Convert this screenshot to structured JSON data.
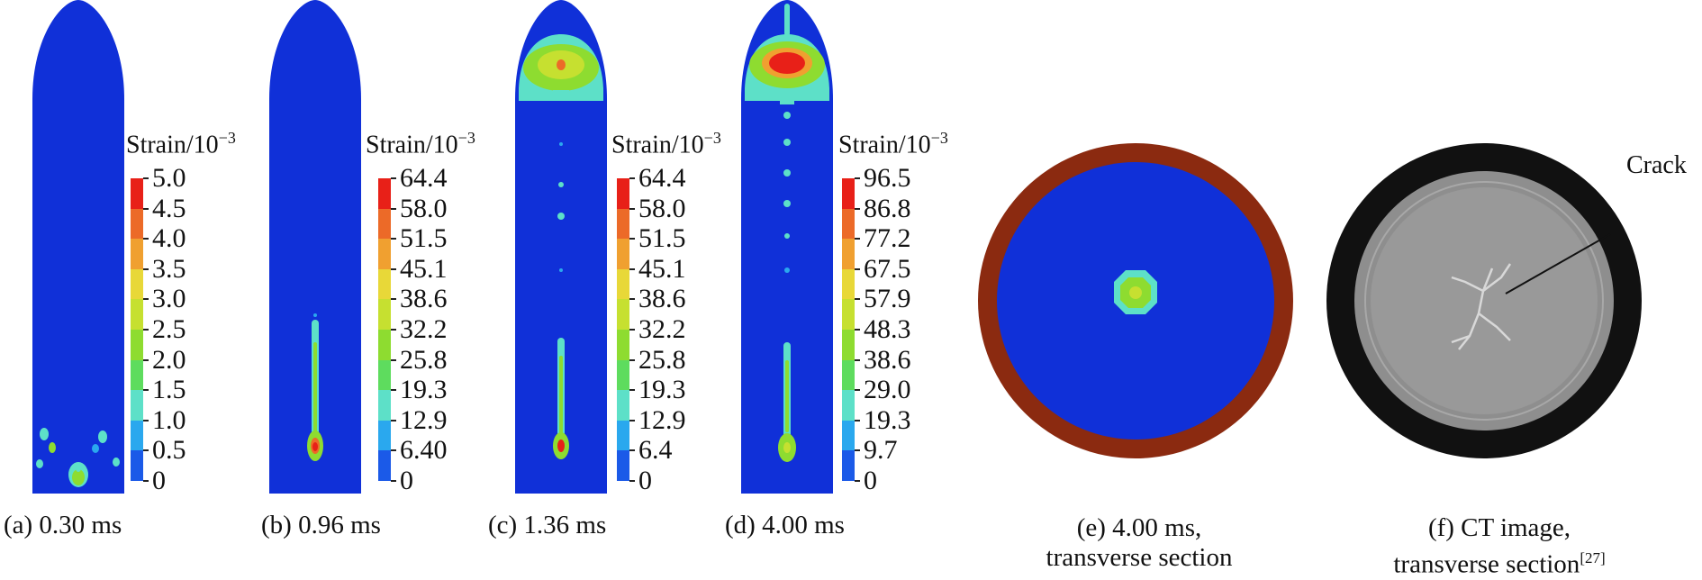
{
  "colorbar_title_main": "Strain/10",
  "colorbar_title_exp": "−3",
  "colormap": [
    "#1028d8",
    "#1b5ae8",
    "#2aa8ee",
    "#5de0c8",
    "#5edc5e",
    "#8edc30",
    "#c6e030",
    "#e8d838",
    "#f0a030",
    "#ec6a28",
    "#e82018"
  ],
  "panels": [
    {
      "id": "a",
      "caption": "(a) 0.30 ms",
      "ticks": [
        "5.0",
        "4.5",
        "4.0",
        "3.5",
        "3.0",
        "2.5",
        "2.0",
        "1.5",
        "1.0",
        "0.5",
        "0"
      ]
    },
    {
      "id": "b",
      "caption": "(b) 0.96 ms",
      "ticks": [
        "64.4",
        "58.0",
        "51.5",
        "45.1",
        "38.6",
        "32.2",
        "25.8",
        "19.3",
        "12.9",
        "6.40",
        "0"
      ]
    },
    {
      "id": "c",
      "caption": "(c) 1.36 ms",
      "ticks": [
        "64.4",
        "58.0",
        "51.5",
        "45.1",
        "38.6",
        "32.2",
        "25.8",
        "19.3",
        "12.9",
        "6.4",
        "0"
      ]
    },
    {
      "id": "d",
      "caption": "(d) 4.00 ms",
      "ticks": [
        "96.5",
        "86.8",
        "77.2",
        "67.5",
        "57.9",
        "48.3",
        "38.6",
        "29.0",
        "19.3",
        "9.7",
        "0"
      ]
    }
  ],
  "panel_e": {
    "caption_line1": "(e) 4.00 ms,",
    "caption_line2": "transverse section"
  },
  "panel_f": {
    "caption_line1": "(f) CT image,",
    "caption_line2": "transverse section",
    "caption_ref": "[27]",
    "crack_label": "Crack"
  }
}
